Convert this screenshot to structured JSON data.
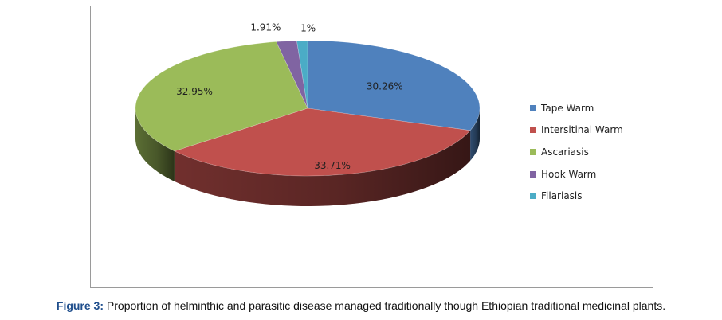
{
  "chart_data": {
    "type": "pie",
    "categories": [
      "Tape Warm",
      "Intersitinal Warm",
      "Ascariasis",
      "Hook Warm",
      "Filariasis"
    ],
    "values": [
      30.26,
      33.71,
      32.95,
      1.91,
      1
    ],
    "data_labels": [
      "30.26%",
      "33.71%",
      "32.95%",
      "1.91%",
      "1%"
    ],
    "colors": [
      "#4F81BD",
      "#C0504D",
      "#9BBB59",
      "#8064A2",
      "#4BACC6"
    ],
    "legend_position": "right",
    "style": "3d"
  },
  "caption": {
    "label": "Figure 3:",
    "text": " Proportion of helminthic and parasitic disease managed traditionally though Ethiopian traditional medicinal plants."
  }
}
